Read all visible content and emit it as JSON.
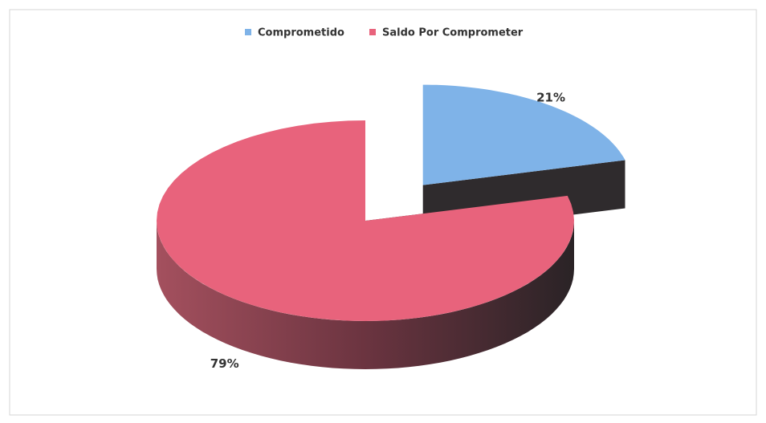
{
  "chart_data": {
    "type": "pie",
    "categories": [
      "Comprometido",
      "Saldo Por Comprometer"
    ],
    "values": [
      21,
      79
    ],
    "value_labels": [
      "21%",
      "79%"
    ],
    "colors": [
      "#7fb3e8",
      "#e8637c"
    ],
    "legend": "top"
  }
}
